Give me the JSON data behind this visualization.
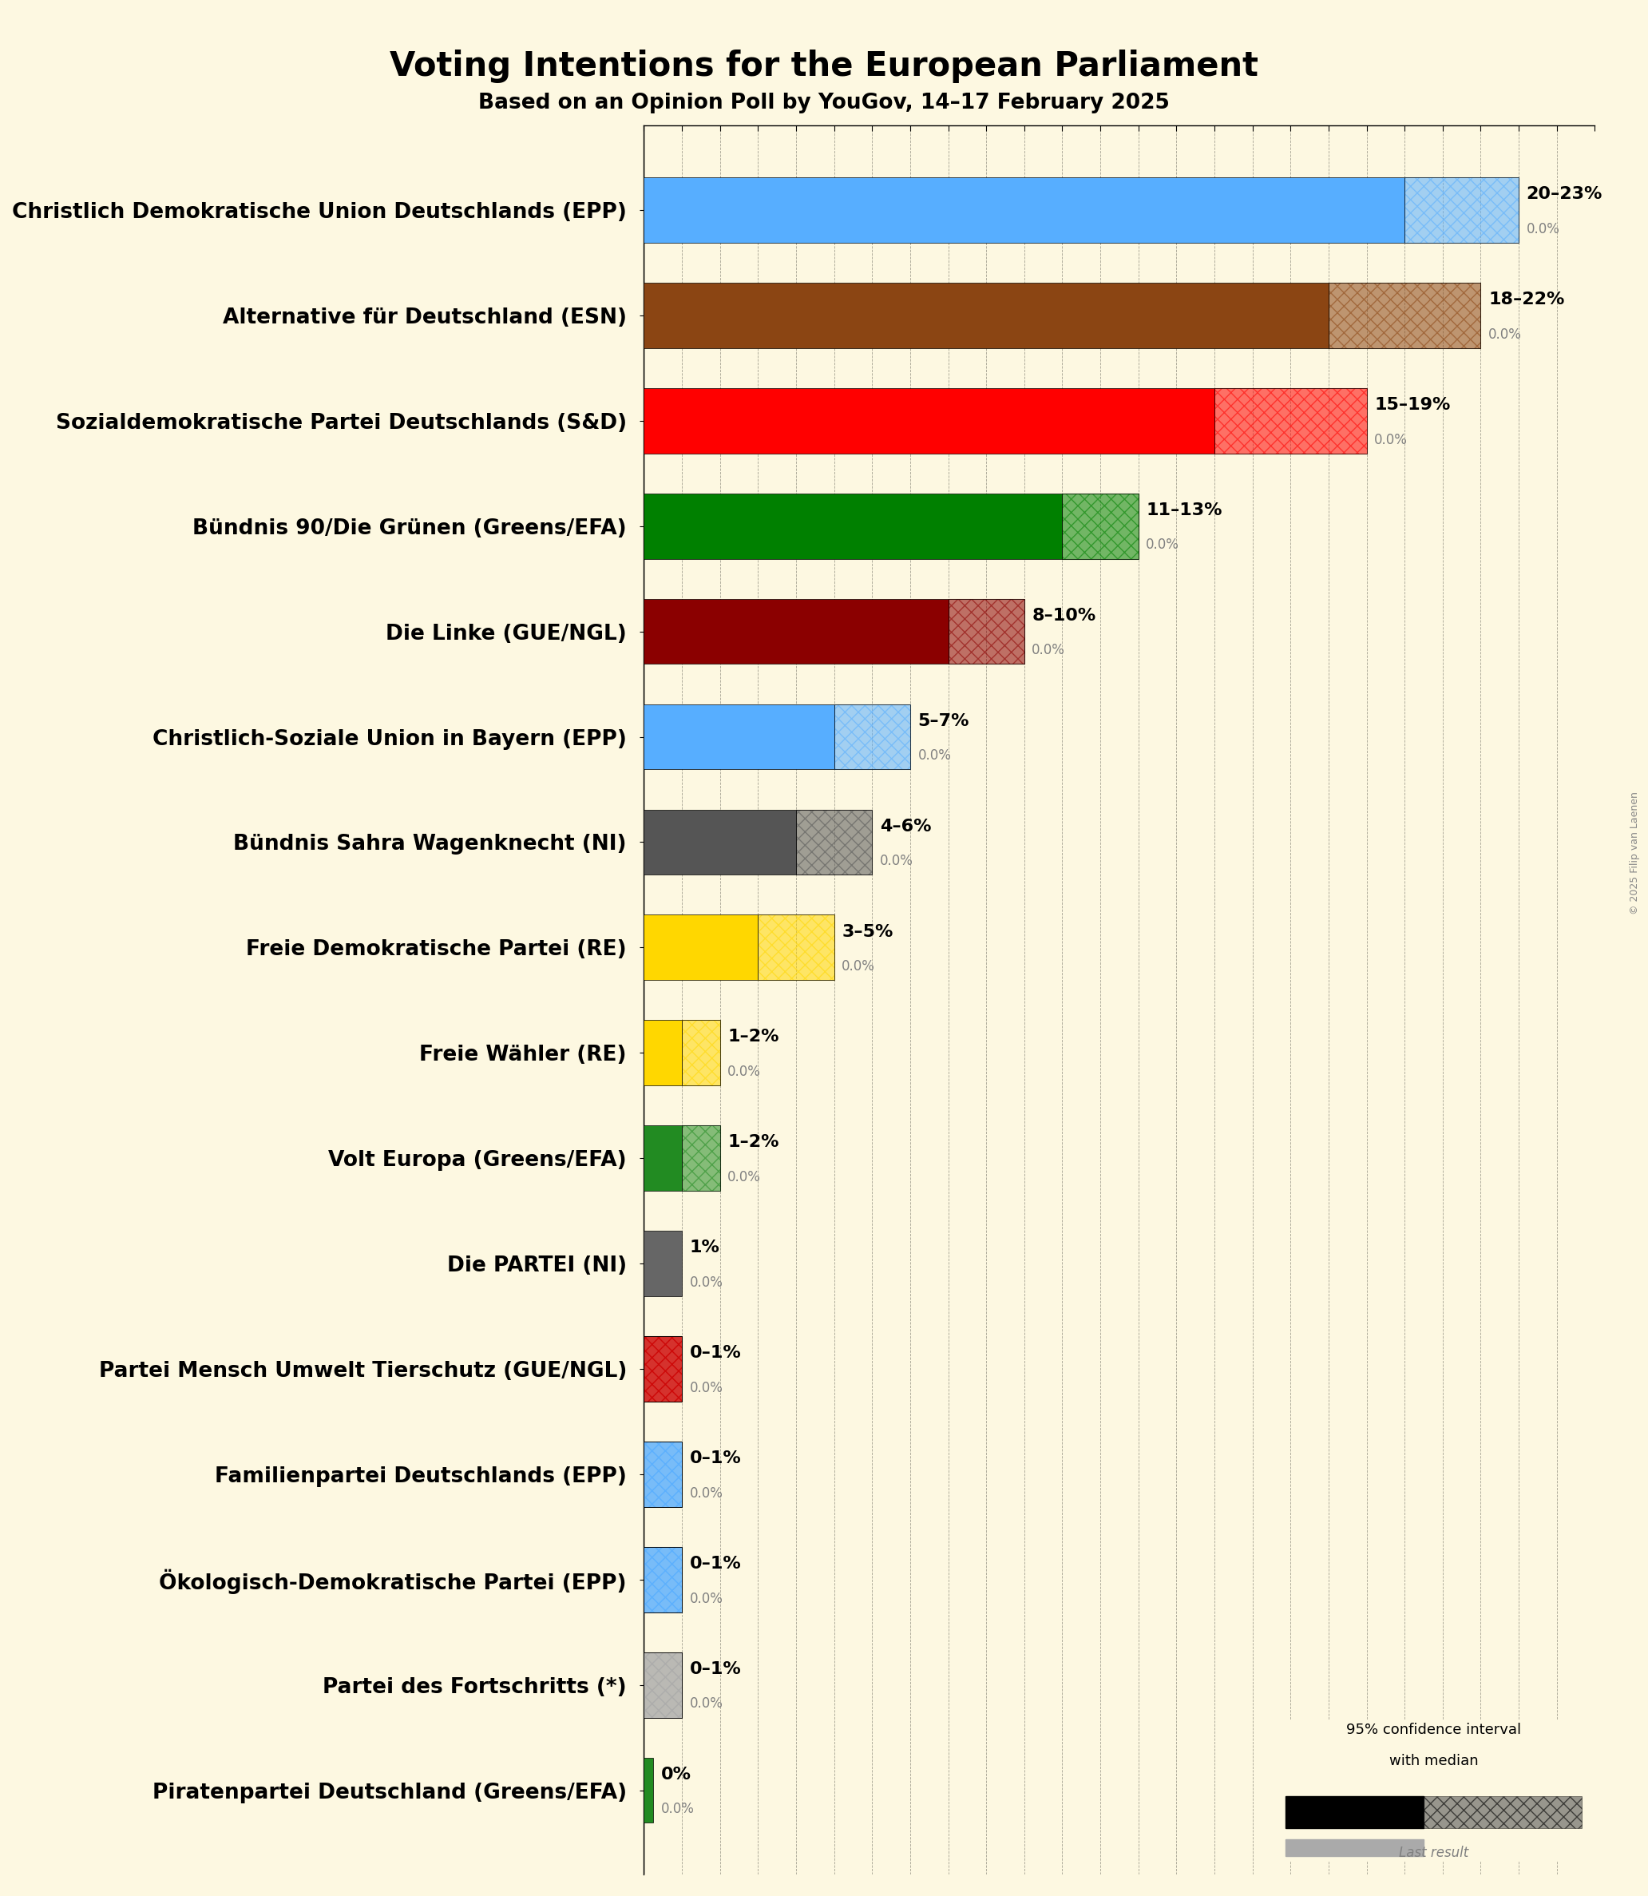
{
  "title": "Voting Intentions for the European Parliament",
  "subtitle": "Based on an Opinion Poll by YouGov, 14–17 February 2025",
  "background_color": "#fdf8e1",
  "watermark": "© 2025 Filip van Laenen",
  "parties": [
    {
      "name": "Christlich Demokratische Union Deutschlands (EPP)",
      "median": 20,
      "low": 20,
      "high": 23,
      "last": 0.0,
      "color": "#57AEFF"
    },
    {
      "name": "Alternative für Deutschland (ESN)",
      "median": 18,
      "low": 18,
      "high": 22,
      "last": 0.0,
      "color": "#8B4513"
    },
    {
      "name": "Sozialdemokratische Partei Deutschlands (S&D)",
      "median": 15,
      "low": 15,
      "high": 19,
      "last": 0.0,
      "color": "#FF0000"
    },
    {
      "name": "Bündnis 90/Die Grünen (Greens/EFA)",
      "median": 11,
      "low": 11,
      "high": 13,
      "last": 0.0,
      "color": "#008000"
    },
    {
      "name": "Die Linke (GUE/NGL)",
      "median": 8,
      "low": 8,
      "high": 10,
      "last": 0.0,
      "color": "#8B0000"
    },
    {
      "name": "Christlich-Soziale Union in Bayern (EPP)",
      "median": 5,
      "low": 5,
      "high": 7,
      "last": 0.0,
      "color": "#57AEFF"
    },
    {
      "name": "Bündnis Sahra Wagenknecht (NI)",
      "median": 4,
      "low": 4,
      "high": 6,
      "last": 0.0,
      "color": "#555555"
    },
    {
      "name": "Freie Demokratische Partei (RE)",
      "median": 3,
      "low": 3,
      "high": 5,
      "last": 0.0,
      "color": "#FFD700"
    },
    {
      "name": "Freie Wähler (RE)",
      "median": 1,
      "low": 1,
      "high": 2,
      "last": 0.0,
      "color": "#FFD700"
    },
    {
      "name": "Volt Europa (Greens/EFA)",
      "median": 1,
      "low": 1,
      "high": 2,
      "last": 0.0,
      "color": "#228B22"
    },
    {
      "name": "Die PARTEI (NI)",
      "median": 1,
      "low": 1,
      "high": 1,
      "last": 0.0,
      "color": "#666666"
    },
    {
      "name": "Partei Mensch Umwelt Tierschutz (GUE/NGL)",
      "median": 0,
      "low": 0,
      "high": 1,
      "last": 0.0,
      "color": "#CC0000"
    },
    {
      "name": "Familienpartei Deutschlands (EPP)",
      "median": 0,
      "low": 0,
      "high": 1,
      "last": 0.0,
      "color": "#57AEFF"
    },
    {
      "name": "Ökologisch-Demokratische Partei (EPP)",
      "median": 0,
      "low": 0,
      "high": 1,
      "last": 0.0,
      "color": "#57AEFF"
    },
    {
      "name": "Partei des Fortschritts (*)",
      "median": 0,
      "low": 0,
      "high": 1,
      "last": 0.0,
      "color": "#AAAAAA"
    },
    {
      "name": "Piratenpartei Deutschland (Greens/EFA)",
      "median": 0,
      "low": 0,
      "high": 0,
      "last": 0.0,
      "color": "#228B22"
    }
  ],
  "xlim_max": 25,
  "label_fontsize": 19,
  "title_fontsize": 30,
  "subtitle_fontsize": 19,
  "bar_height": 0.62
}
